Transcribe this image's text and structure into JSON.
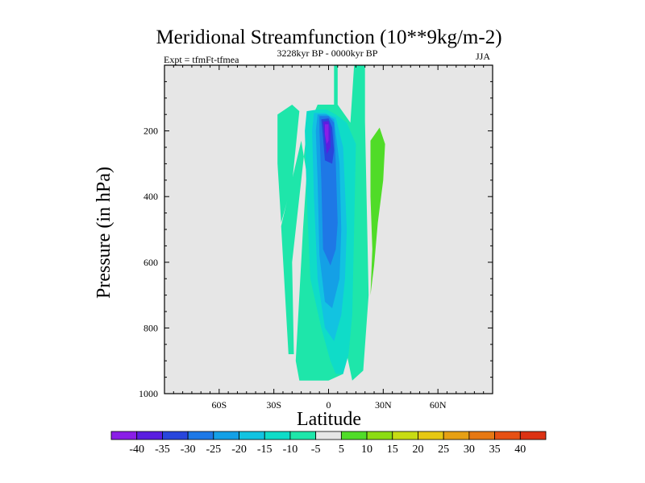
{
  "chart_data": {
    "type": "contour",
    "title": "Meridional Streamfunction (10**9kg/m-2)",
    "left_string": "Expt = tfmFt-tfmea",
    "center_string": "3228kyr BP - 0000kyr BP",
    "right_string": "JJA",
    "xlabel": "Latitude",
    "ylabel": "Pressure (in hPa)",
    "xlim": [
      -90,
      90
    ],
    "ylim": [
      1000,
      0
    ],
    "x_ticks": [
      {
        "value": -60,
        "label": "60S"
      },
      {
        "value": -30,
        "label": "30S"
      },
      {
        "value": 0,
        "label": "0"
      },
      {
        "value": 30,
        "label": "30N"
      },
      {
        "value": 60,
        "label": "60N"
      }
    ],
    "y_ticks": [
      {
        "value": 200,
        "label": "200"
      },
      {
        "value": 400,
        "label": "400"
      },
      {
        "value": 600,
        "label": "600"
      },
      {
        "value": 800,
        "label": "800"
      },
      {
        "value": 1000,
        "label": "1000"
      }
    ],
    "background_color": "#e6e6e6",
    "colorbar": {
      "labels": [
        "-40",
        "-35",
        "-30",
        "-25",
        "-20",
        "-15",
        "-10",
        "-5",
        "5",
        "10",
        "15",
        "20",
        "25",
        "30",
        "35",
        "40"
      ],
      "colors": [
        "#8a1ee6",
        "#5a1ee0",
        "#2846dc",
        "#1e78e6",
        "#14a0e6",
        "#12c3e1",
        "#0fdcc8",
        "#1ee6aa",
        "#e6e6e6",
        "#50dc28",
        "#8cdc14",
        "#c8dc14",
        "#e6c814",
        "#e6a014",
        "#e67814",
        "#e65014",
        "#dc3214"
      ]
    },
    "regions": [
      {
        "name": "band-minus-5-10-main",
        "level": "-10 to -5",
        "color": "#1ee6aa",
        "points": [
          [
            -26,
            490
          ],
          [
            -22,
            880
          ],
          [
            -19,
            880
          ],
          [
            -20,
            600
          ],
          [
            -12,
            200
          ],
          [
            -6,
            120
          ],
          [
            3,
            120
          ],
          [
            3,
            0
          ],
          [
            5,
            0
          ],
          [
            5,
            120
          ],
          [
            12,
            175
          ],
          [
            14,
            0
          ],
          [
            20,
            0
          ],
          [
            20,
            170
          ],
          [
            22,
            700
          ],
          [
            19,
            930
          ],
          [
            13,
            960
          ],
          [
            10,
            880
          ],
          [
            8,
            940
          ],
          [
            0,
            960
          ],
          [
            -16,
            960
          ],
          [
            -18,
            900
          ],
          [
            -14,
            500
          ],
          [
            -12,
            330
          ],
          [
            -15,
            230
          ],
          [
            -26,
            490
          ]
        ]
      },
      {
        "name": "band-minus-5-10-left",
        "level": "-10 to -5",
        "color": "#1ee6aa",
        "points": [
          [
            -28,
            150
          ],
          [
            -20,
            120
          ],
          [
            -16,
            140
          ],
          [
            -20,
            360
          ],
          [
            -26,
            480
          ],
          [
            -28,
            300
          ]
        ]
      },
      {
        "name": "band-minus-10-15",
        "level": "-15 to -10",
        "color": "#0fdcc8",
        "points": [
          [
            -12,
            140
          ],
          [
            -6,
            135
          ],
          [
            -1,
            135
          ],
          [
            4,
            150
          ],
          [
            10,
            175
          ],
          [
            15,
            240
          ],
          [
            14,
            500
          ],
          [
            13,
            760
          ],
          [
            11,
            880
          ],
          [
            8,
            940
          ],
          [
            4,
            940
          ],
          [
            1,
            900
          ],
          [
            -4,
            800
          ],
          [
            -10,
            650
          ],
          [
            -12,
            400
          ],
          [
            -13,
            200
          ]
        ]
      },
      {
        "name": "band-minus-15-20",
        "level": "-20 to -15",
        "color": "#12c3e1",
        "points": [
          [
            -8,
            145
          ],
          [
            -2,
            145
          ],
          [
            4,
            160
          ],
          [
            8,
            250
          ],
          [
            10,
            500
          ],
          [
            9,
            650
          ],
          [
            7,
            760
          ],
          [
            3,
            840
          ],
          [
            -2,
            800
          ],
          [
            -6,
            650
          ],
          [
            -8,
            400
          ],
          [
            -9,
            200
          ]
        ]
      },
      {
        "name": "band-minus-20-25",
        "level": "-25 to -20",
        "color": "#14a0e6",
        "points": [
          [
            -6,
            150
          ],
          [
            -1,
            150
          ],
          [
            3,
            165
          ],
          [
            6,
            300
          ],
          [
            7,
            500
          ],
          [
            6,
            650
          ],
          [
            2,
            740
          ],
          [
            -2,
            720
          ],
          [
            -5,
            580
          ],
          [
            -6,
            350
          ],
          [
            -7,
            200
          ]
        ]
      },
      {
        "name": "band-minus-25-30",
        "level": "-30 to -25",
        "color": "#1e78e6",
        "points": [
          [
            -5,
            155
          ],
          [
            0,
            155
          ],
          [
            3,
            175
          ],
          [
            4,
            300
          ],
          [
            5,
            480
          ],
          [
            4,
            560
          ],
          [
            1,
            610
          ],
          [
            -3,
            560
          ],
          [
            -4,
            350
          ],
          [
            -5,
            200
          ]
        ]
      },
      {
        "name": "band-minus-30-35",
        "level": "-35 to -30",
        "color": "#2846dc",
        "points": [
          [
            -4,
            165
          ],
          [
            0,
            162
          ],
          [
            2,
            190
          ],
          [
            3,
            260
          ],
          [
            2,
            300
          ],
          [
            -2,
            290
          ],
          [
            -3,
            220
          ]
        ]
      },
      {
        "name": "band-minus-35-40",
        "level": "-40 to -35",
        "color": "#5a1ee0",
        "points": [
          [
            -3,
            172
          ],
          [
            0,
            170
          ],
          [
            1,
            200
          ],
          [
            1,
            250
          ],
          [
            -1,
            270
          ],
          [
            -2,
            220
          ]
        ]
      },
      {
        "name": "band-below-minus-40",
        "level": "< -40",
        "color": "#8a1ee6",
        "points": [
          [
            -2,
            180
          ],
          [
            0,
            180
          ],
          [
            0,
            230
          ],
          [
            -1,
            240
          ],
          [
            -2,
            210
          ]
        ]
      },
      {
        "name": "band-plus-5-10",
        "level": "5 to 10",
        "color": "#50dc28",
        "points": [
          [
            23,
            230
          ],
          [
            28,
            190
          ],
          [
            31,
            240
          ],
          [
            30,
            350
          ],
          [
            27,
            480
          ],
          [
            25,
            610
          ],
          [
            23,
            700
          ],
          [
            24,
            560
          ],
          [
            23,
            400
          ]
        ]
      }
    ]
  }
}
